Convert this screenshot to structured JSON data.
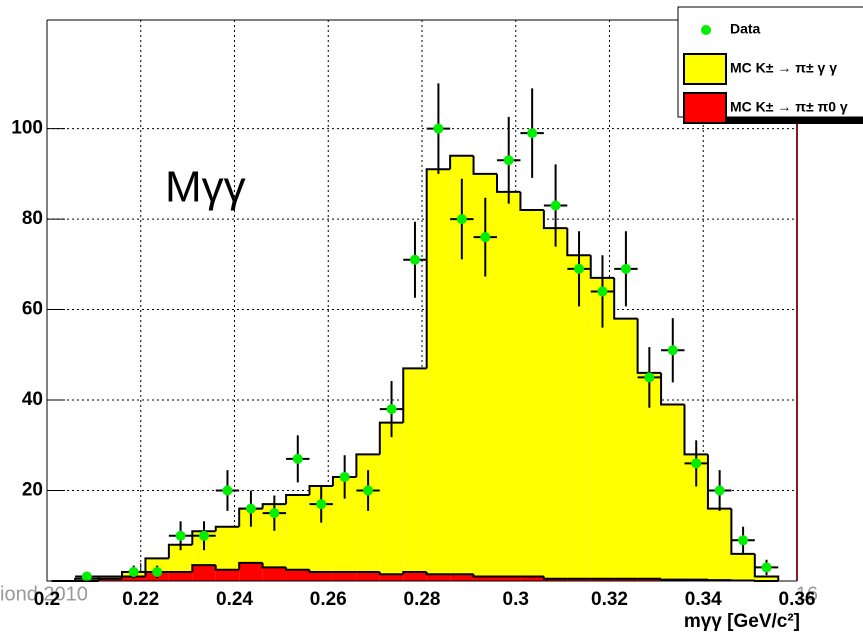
{
  "chart_data": {
    "type": "histogram",
    "annotation": "Mγγ",
    "x_label": "mγγ [GeV/c²]",
    "footer_left": "iond 2010",
    "footer_right": "16",
    "bins": [
      0.201,
      0.206,
      0.211,
      0.216,
      0.221,
      0.226,
      0.231,
      0.236,
      0.241,
      0.246,
      0.251,
      0.256,
      0.261,
      0.266,
      0.271,
      0.276,
      0.281,
      0.286,
      0.291,
      0.296,
      0.301,
      0.306,
      0.311,
      0.316,
      0.321,
      0.326,
      0.331,
      0.336,
      0.341,
      0.346,
      0.351,
      0.356
    ],
    "series": [
      {
        "name": "Data",
        "color": "#00ee00",
        "style": "points",
        "values": [
          null,
          1,
          null,
          2,
          2,
          10,
          10,
          20,
          16,
          15,
          27,
          17,
          23,
          20,
          38,
          71,
          100,
          80,
          76,
          93,
          99,
          83,
          69,
          64,
          69,
          45,
          51,
          26,
          20,
          9,
          3
        ],
        "errors": [
          null,
          1,
          null,
          1.4,
          1.4,
          3.2,
          3.2,
          4.5,
          4,
          3.9,
          5.2,
          4.1,
          4.8,
          4.5,
          6.2,
          8.4,
          10,
          8.9,
          8.7,
          9.6,
          9.9,
          9.1,
          8.3,
          8,
          8.3,
          6.7,
          7.1,
          5.1,
          4.5,
          3,
          1.7
        ]
      },
      {
        "name": "MC K± → π± γ γ",
        "color": "#ffff00",
        "style": "filled",
        "values": [
          0,
          0.5,
          1,
          2,
          5,
          8,
          11,
          12,
          16,
          17,
          19,
          21,
          23,
          28,
          35,
          47,
          91,
          94,
          90,
          86,
          82,
          78,
          72,
          67,
          58,
          46,
          39,
          28,
          16,
          6,
          1
        ]
      },
      {
        "name": "MC K± → π± π0 γ",
        "color": "#ff0000",
        "style": "filled",
        "values": [
          0,
          0,
          0.5,
          1,
          2,
          2,
          3.5,
          2.5,
          4,
          3,
          2.5,
          2,
          2,
          2,
          1.5,
          2,
          1.5,
          1.5,
          1,
          1,
          1,
          0.5,
          0.5,
          0.5,
          0.5,
          0.5,
          0.3,
          0.3,
          0.2,
          0.1,
          0
        ]
      }
    ],
    "xlim": [
      0.2,
      0.36
    ],
    "ylim": [
      0,
      124
    ],
    "xticks": [
      0.2,
      0.22,
      0.24,
      0.26,
      0.28,
      0.3,
      0.32,
      0.34,
      0.36
    ],
    "yticks": [
      20,
      40,
      60,
      80,
      100
    ],
    "grid": true
  }
}
